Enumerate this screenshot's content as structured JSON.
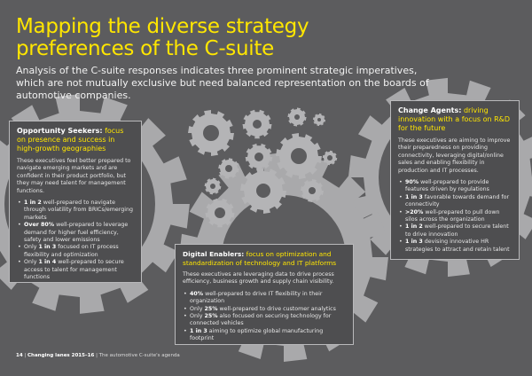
{
  "title": [
    "Mapping the diverse strategy",
    "preferences of the C-suite"
  ],
  "subtitle": "Analysis of the C-suite responses indicates three prominent strategic imperatives, which are not mutually exclusive but need balanced representation on the boards of automotive companies.",
  "left": {
    "head_bold": "Opportunity Seekers:",
    "head_rest": " focus on presence and success in high-growth geographies",
    "body": "These executives feel better prepared to navigate emerging markets and are confident in their product portfolio, but they may need talent for management functions.",
    "items": [
      {
        "pre": "",
        "bold": "1 in 2",
        "text": " well-prepared to navigate through volatility from BRICs/emerging markets"
      },
      {
        "pre": "",
        "bold": "Over 80%",
        "text": " well-prepared to leverage demand for higher fuel efficiency, safety and lower emissions"
      },
      {
        "pre": "Only ",
        "bold": "1 in 3",
        "text": " focused on IT process flexibility and optimization"
      },
      {
        "pre": "Only ",
        "bold": "1 in 4",
        "text": " well-prepared to secure access to talent for management functions"
      }
    ]
  },
  "right": {
    "head_bold": "Change Agents:",
    "head_rest": " driving innovation with a focus on R&D for the future",
    "body": "These executives are aiming to improve their preparedness on providing connectivity, leveraging digital/online sales and enabling flexibility in production and IT processes.",
    "items": [
      {
        "pre": "",
        "bold": "90%",
        "text": " well-prepared to provide features driven by regulations"
      },
      {
        "pre": "",
        "bold": "1 in 3",
        "text": " favorable towards demand for connectivity"
      },
      {
        "pre": "",
        "bold": ">20%",
        "text": " well-prepared to pull down silos across the organization"
      },
      {
        "pre": "",
        "bold": "1 in 2",
        "text": " well-prepared to secure talent to drive innovation"
      },
      {
        "pre": "",
        "bold": "1 in 3",
        "text": " devising innovative HR strategies to attract and retain talent"
      }
    ]
  },
  "mid": {
    "head_bold": "Digital Enablers:",
    "head_rest": " focus on optimization and standardization of technology and IT platforms",
    "body": "These executives are leveraging data to drive process efficiency, business growth and supply chain visibility.",
    "items": [
      {
        "pre": "",
        "bold": "40%",
        "text": " well-prepared to drive IT flexibility in their organization"
      },
      {
        "pre": "Only ",
        "bold": "25%",
        "text": " well-prepared to drive customer analytics"
      },
      {
        "pre": "Only ",
        "bold": "25%",
        "text": " also focused on securing technology for connected vehicles"
      },
      {
        "pre": "",
        "bold": "1 in 3",
        "text": " aiming to optimize global manufacturing footprint"
      }
    ]
  },
  "footer": {
    "page": "14",
    "sep": " | ",
    "bold": "Changing lanes 2015–16",
    "rest": " | The automotive C-suite's agenda"
  },
  "colors": {
    "accent": "#ffe600",
    "background": "#5c5c5e",
    "gear": "#b4b4b6"
  }
}
